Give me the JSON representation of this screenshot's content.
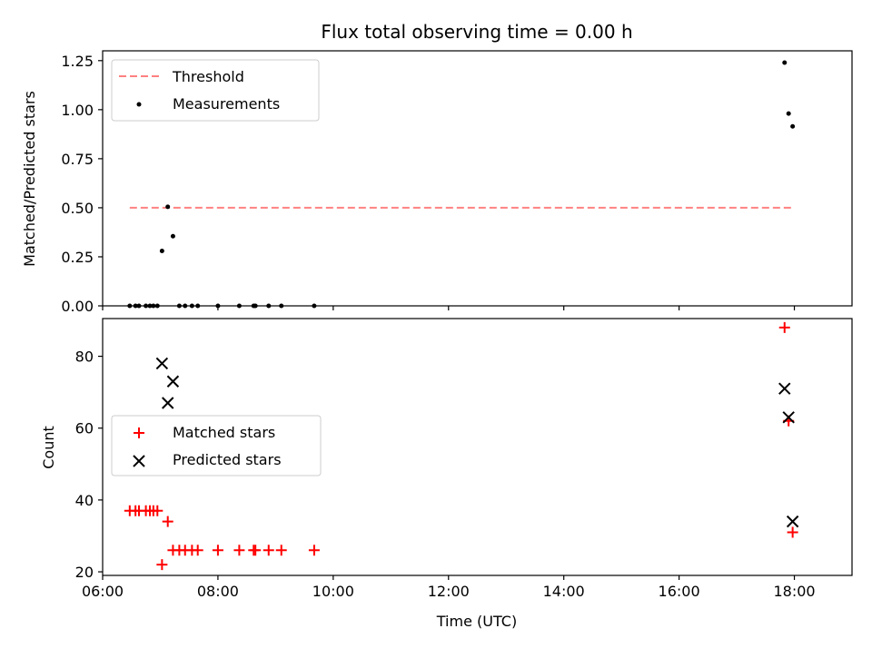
{
  "chart_data": [
    {
      "type": "scatter",
      "title": "Flux total observing time = 0.00 h",
      "ylabel": "Matched/Predicted stars",
      "xlabel": "",
      "xlim": [
        6.0,
        19.0
      ],
      "ylim": [
        0.0,
        1.3
      ],
      "xticks": [
        6,
        8,
        10,
        12,
        14,
        16,
        18
      ],
      "yticks": [
        0.0,
        0.25,
        0.5,
        0.75,
        1.0,
        1.25
      ],
      "ytick_labels": [
        "0.00",
        "0.25",
        "0.50",
        "0.75",
        "1.00",
        "1.25"
      ],
      "xtick_labels_visible": false,
      "legend": {
        "position": "upper-left",
        "entries": [
          "Threshold",
          "Measurements"
        ]
      },
      "series": [
        {
          "name": "Threshold",
          "kind": "dashed-line",
          "color": "#ff8080",
          "x": [
            6.47,
            17.97
          ],
          "y": [
            0.5,
            0.5
          ]
        },
        {
          "name": "Measurements",
          "kind": "dot",
          "color": "#000000",
          "x": [
            6.47,
            6.57,
            6.63,
            6.75,
            6.82,
            6.88,
            6.95,
            7.03,
            7.13,
            7.22,
            7.33,
            7.43,
            7.55,
            7.65,
            8.0,
            8.37,
            8.62,
            8.65,
            8.88,
            9.1,
            9.67,
            17.83,
            17.9,
            17.97
          ],
          "y": [
            0,
            0,
            0,
            0,
            0,
            0,
            0,
            0.28,
            0.505,
            0.355,
            0,
            0,
            0,
            0,
            0,
            0,
            0,
            0,
            0,
            0,
            0,
            1.24,
            0.98,
            0.915
          ]
        }
      ]
    },
    {
      "type": "scatter",
      "title": "",
      "ylabel": "Count",
      "xlabel": "Time (UTC)",
      "xlim": [
        6.0,
        19.0
      ],
      "ylim": [
        19.0,
        90.5
      ],
      "xticks": [
        6,
        8,
        10,
        12,
        14,
        16,
        18
      ],
      "xtick_labels": [
        "06:00",
        "08:00",
        "10:00",
        "12:00",
        "14:00",
        "16:00",
        "18:00"
      ],
      "yticks": [
        20,
        40,
        60,
        80
      ],
      "ytick_labels": [
        "20",
        "40",
        "60",
        "80"
      ],
      "legend": {
        "position": "center-left",
        "entries": [
          "Matched stars",
          "Predicted stars"
        ]
      },
      "series": [
        {
          "name": "Matched stars",
          "kind": "plus",
          "color": "#ff0000",
          "x": [
            6.47,
            6.57,
            6.63,
            6.75,
            6.82,
            6.88,
            6.95,
            7.03,
            7.13,
            7.22,
            7.33,
            7.43,
            7.55,
            7.65,
            8.0,
            8.37,
            8.62,
            8.65,
            8.88,
            9.1,
            9.67,
            17.83,
            17.9,
            17.97
          ],
          "y": [
            37,
            37,
            37,
            37,
            37,
            37,
            37,
            22,
            34,
            26,
            26,
            26,
            26,
            26,
            26,
            26,
            26,
            26,
            26,
            26,
            26,
            88,
            62,
            31
          ]
        },
        {
          "name": "Predicted stars",
          "kind": "x",
          "color": "#000000",
          "x": [
            7.03,
            7.13,
            7.22,
            17.83,
            17.9,
            17.97
          ],
          "y": [
            78,
            67,
            73,
            71,
            63,
            34
          ]
        }
      ]
    }
  ]
}
